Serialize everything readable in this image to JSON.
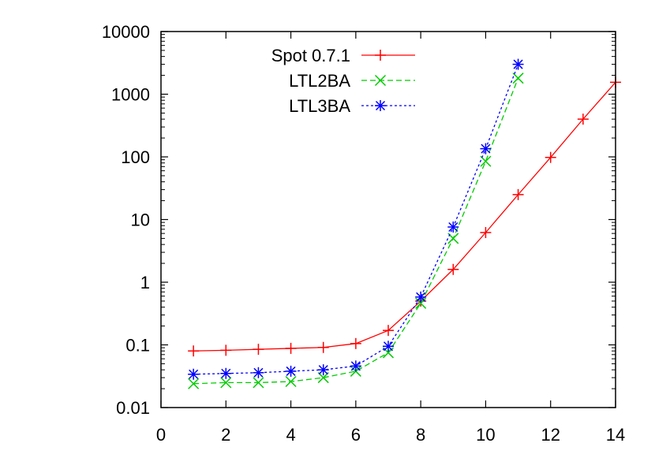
{
  "chart_data": {
    "type": "line",
    "title": "",
    "xlabel": "",
    "ylabel": "",
    "xlim": [
      0,
      14
    ],
    "ylim": [
      0.01,
      10000
    ],
    "yscale": "log",
    "grid": false,
    "legend_position": "top-left",
    "x_ticks": [
      0,
      2,
      4,
      6,
      8,
      10,
      12,
      14
    ],
    "x_tick_labels": [
      "0",
      "2",
      "4",
      "6",
      "8",
      "10",
      "12",
      "14"
    ],
    "y_ticks": [
      0.01,
      0.1,
      1,
      10,
      100,
      1000,
      10000
    ],
    "y_tick_labels": [
      "0.01",
      "0.1",
      "1",
      "10",
      "100",
      "1000",
      "10000"
    ],
    "series": [
      {
        "name": "Spot 0.7.1",
        "color": "#ff0000",
        "dash": "solid",
        "marker": "plus",
        "x": [
          1,
          2,
          3,
          4,
          5,
          6,
          7,
          8,
          9,
          10,
          11,
          12,
          13,
          14
        ],
        "y": [
          0.08,
          0.082,
          0.085,
          0.088,
          0.091,
          0.105,
          0.17,
          0.5,
          1.6,
          6.2,
          25,
          98,
          400,
          1550
        ]
      },
      {
        "name": "LTL2BA",
        "color": "#00cc00",
        "dash": "dashed",
        "marker": "x",
        "x": [
          1,
          2,
          3,
          4,
          5,
          6,
          7,
          8,
          9,
          10,
          11
        ],
        "y": [
          0.024,
          0.025,
          0.025,
          0.026,
          0.03,
          0.038,
          0.075,
          0.46,
          5.0,
          85,
          1800
        ]
      },
      {
        "name": "LTL3BA",
        "color": "#0000ff",
        "dash": "dotted",
        "marker": "star",
        "x": [
          1,
          2,
          3,
          4,
          5,
          6,
          7,
          8,
          9,
          10,
          11
        ],
        "y": [
          0.034,
          0.035,
          0.036,
          0.038,
          0.04,
          0.046,
          0.095,
          0.58,
          7.6,
          135,
          3000
        ]
      }
    ]
  }
}
